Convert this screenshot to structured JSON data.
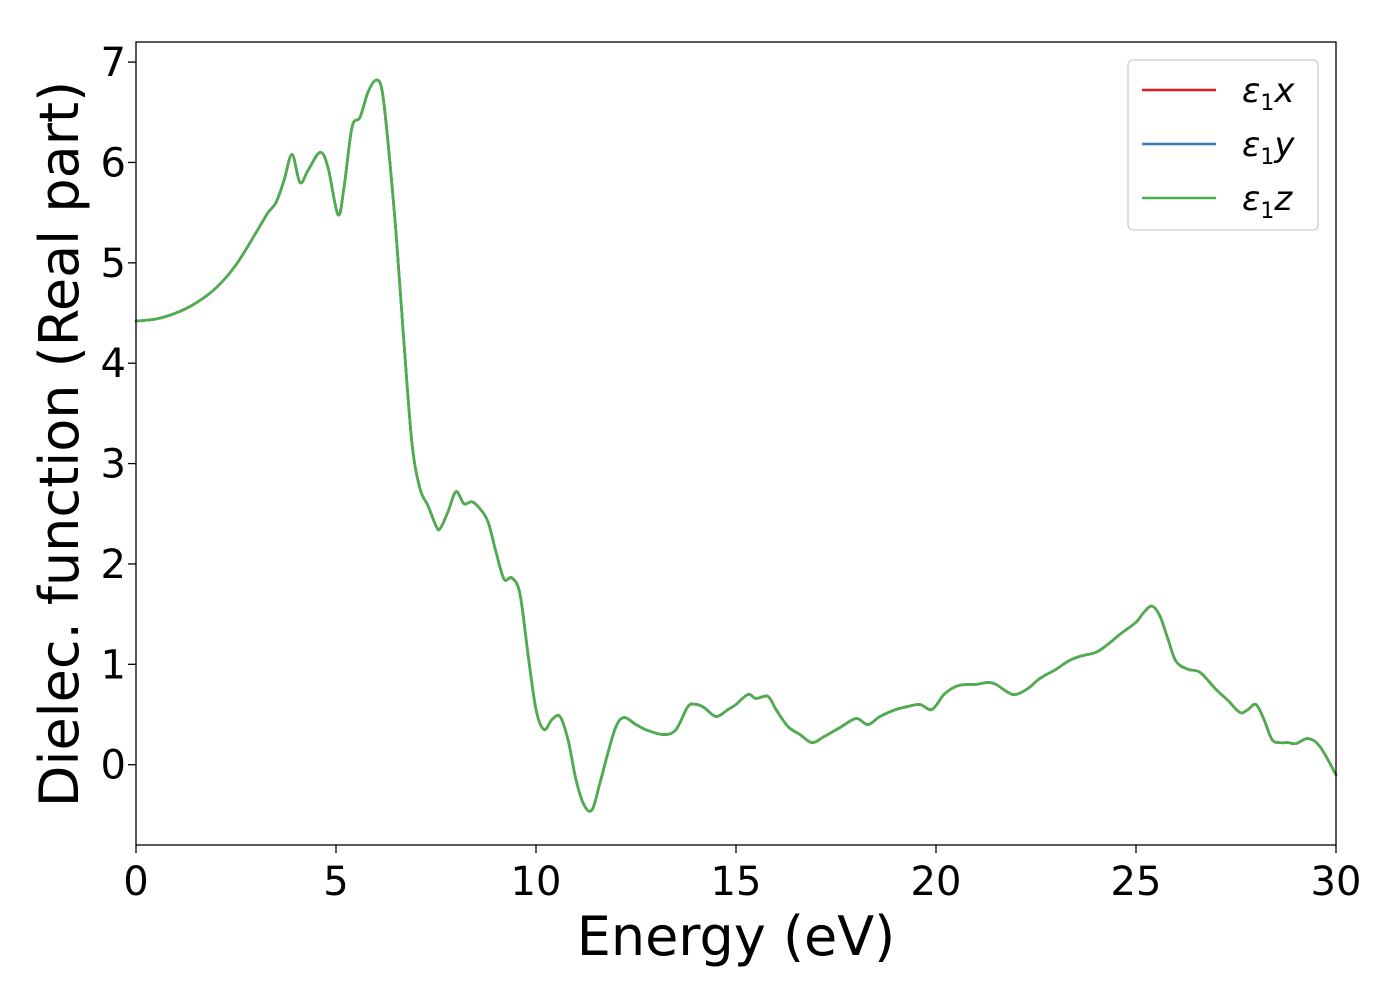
{
  "chart_data": {
    "type": "line",
    "xlabel": "Energy (eV)",
    "ylabel": "Dielec. function (Real part)",
    "xlim": [
      0,
      30
    ],
    "ylim": [
      -0.8,
      7.2
    ],
    "xticks": [
      0,
      5,
      10,
      15,
      20,
      25,
      30
    ],
    "yticks": [
      0,
      1,
      2,
      3,
      4,
      5,
      6,
      7
    ],
    "grid": false,
    "legend_position": "top-right",
    "legend": [
      {
        "symbol": "ε",
        "sub": "1",
        "axis": "x",
        "color": "#e41a1c"
      },
      {
        "symbol": "ε",
        "sub": "1",
        "axis": "y",
        "color": "#377eb8"
      },
      {
        "symbol": "ε",
        "sub": "1",
        "axis": "z",
        "color": "#4daf4a"
      }
    ],
    "x": [
      0,
      0.5,
      1.0,
      1.5,
      2.0,
      2.5,
      3.0,
      3.3,
      3.5,
      3.7,
      3.9,
      4.1,
      4.3,
      4.6,
      4.8,
      5.05,
      5.2,
      5.4,
      5.6,
      5.8,
      6.0,
      6.15,
      6.3,
      6.5,
      6.7,
      6.9,
      7.1,
      7.3,
      7.5,
      7.6,
      7.8,
      8.0,
      8.2,
      8.4,
      8.6,
      8.8,
      9.0,
      9.2,
      9.4,
      9.6,
      9.8,
      10.0,
      10.2,
      10.4,
      10.6,
      10.8,
      11.0,
      11.2,
      11.4,
      11.6,
      11.8,
      12.0,
      12.2,
      12.5,
      12.8,
      13.2,
      13.5,
      13.8,
      14.0,
      14.2,
      14.5,
      14.8,
      15.0,
      15.3,
      15.5,
      15.8,
      16.0,
      16.3,
      16.6,
      16.9,
      17.2,
      17.6,
      18.0,
      18.3,
      18.6,
      19.0,
      19.3,
      19.6,
      19.9,
      20.2,
      20.5,
      20.8,
      21.0,
      21.3,
      21.5,
      21.8,
      22.0,
      22.3,
      22.6,
      23.0,
      23.3,
      23.6,
      24.0,
      24.3,
      24.6,
      25.0,
      25.2,
      25.4,
      25.6,
      25.8,
      26.0,
      26.3,
      26.6,
      27.0,
      27.3,
      27.6,
      27.8,
      28.0,
      28.2,
      28.4,
      28.6,
      28.8,
      29.0,
      29.3,
      29.6,
      30.0
    ],
    "series": [
      {
        "axis": "x",
        "color": "#e41a1c",
        "values": [
          4.42,
          4.44,
          4.5,
          4.6,
          4.75,
          4.98,
          5.3,
          5.5,
          5.6,
          5.82,
          6.08,
          5.8,
          5.92,
          6.1,
          5.95,
          5.48,
          5.75,
          6.35,
          6.45,
          6.7,
          6.82,
          6.72,
          6.2,
          5.3,
          4.2,
          3.2,
          2.75,
          2.58,
          2.38,
          2.35,
          2.52,
          2.72,
          2.6,
          2.62,
          2.55,
          2.42,
          2.12,
          1.85,
          1.86,
          1.7,
          1.1,
          0.55,
          0.35,
          0.45,
          0.48,
          0.25,
          -0.15,
          -0.4,
          -0.45,
          -0.18,
          0.12,
          0.38,
          0.47,
          0.4,
          0.34,
          0.3,
          0.35,
          0.58,
          0.6,
          0.57,
          0.48,
          0.55,
          0.6,
          0.7,
          0.66,
          0.68,
          0.55,
          0.38,
          0.3,
          0.22,
          0.28,
          0.37,
          0.46,
          0.4,
          0.48,
          0.55,
          0.58,
          0.6,
          0.55,
          0.7,
          0.78,
          0.8,
          0.8,
          0.82,
          0.8,
          0.72,
          0.7,
          0.76,
          0.86,
          0.95,
          1.03,
          1.08,
          1.12,
          1.2,
          1.3,
          1.42,
          1.52,
          1.58,
          1.48,
          1.25,
          1.03,
          0.95,
          0.92,
          0.75,
          0.64,
          0.52,
          0.55,
          0.6,
          0.45,
          0.25,
          0.22,
          0.22,
          0.21,
          0.26,
          0.18,
          -0.1
        ]
      },
      {
        "axis": "y",
        "color": "#377eb8",
        "values": [
          4.42,
          4.44,
          4.5,
          4.6,
          4.75,
          4.98,
          5.3,
          5.5,
          5.6,
          5.82,
          6.08,
          5.8,
          5.92,
          6.1,
          5.95,
          5.48,
          5.75,
          6.35,
          6.45,
          6.7,
          6.82,
          6.72,
          6.2,
          5.3,
          4.2,
          3.2,
          2.75,
          2.58,
          2.38,
          2.35,
          2.52,
          2.72,
          2.6,
          2.62,
          2.55,
          2.42,
          2.12,
          1.85,
          1.86,
          1.7,
          1.1,
          0.55,
          0.35,
          0.45,
          0.48,
          0.25,
          -0.15,
          -0.4,
          -0.45,
          -0.18,
          0.12,
          0.38,
          0.47,
          0.4,
          0.34,
          0.3,
          0.35,
          0.58,
          0.6,
          0.57,
          0.48,
          0.55,
          0.6,
          0.7,
          0.66,
          0.68,
          0.55,
          0.38,
          0.3,
          0.22,
          0.28,
          0.37,
          0.46,
          0.4,
          0.48,
          0.55,
          0.58,
          0.6,
          0.55,
          0.7,
          0.78,
          0.8,
          0.8,
          0.82,
          0.8,
          0.72,
          0.7,
          0.76,
          0.86,
          0.95,
          1.03,
          1.08,
          1.12,
          1.2,
          1.3,
          1.42,
          1.52,
          1.58,
          1.48,
          1.25,
          1.03,
          0.95,
          0.92,
          0.75,
          0.64,
          0.52,
          0.55,
          0.6,
          0.45,
          0.25,
          0.22,
          0.22,
          0.21,
          0.26,
          0.18,
          -0.1
        ]
      },
      {
        "axis": "z",
        "color": "#4daf4a",
        "values": [
          4.42,
          4.44,
          4.5,
          4.6,
          4.75,
          4.98,
          5.3,
          5.5,
          5.6,
          5.82,
          6.08,
          5.8,
          5.92,
          6.1,
          5.95,
          5.48,
          5.75,
          6.35,
          6.45,
          6.7,
          6.82,
          6.72,
          6.2,
          5.3,
          4.2,
          3.2,
          2.75,
          2.58,
          2.38,
          2.35,
          2.52,
          2.72,
          2.6,
          2.62,
          2.55,
          2.42,
          2.12,
          1.85,
          1.86,
          1.7,
          1.1,
          0.55,
          0.35,
          0.45,
          0.48,
          0.25,
          -0.15,
          -0.4,
          -0.45,
          -0.18,
          0.12,
          0.38,
          0.47,
          0.4,
          0.34,
          0.3,
          0.35,
          0.58,
          0.6,
          0.57,
          0.48,
          0.55,
          0.6,
          0.7,
          0.66,
          0.68,
          0.55,
          0.38,
          0.3,
          0.22,
          0.28,
          0.37,
          0.46,
          0.4,
          0.48,
          0.55,
          0.58,
          0.6,
          0.55,
          0.7,
          0.78,
          0.8,
          0.8,
          0.82,
          0.8,
          0.72,
          0.7,
          0.76,
          0.86,
          0.95,
          1.03,
          1.08,
          1.12,
          1.2,
          1.3,
          1.42,
          1.52,
          1.58,
          1.48,
          1.25,
          1.03,
          0.95,
          0.92,
          0.75,
          0.64,
          0.52,
          0.55,
          0.6,
          0.45,
          0.25,
          0.22,
          0.22,
          0.21,
          0.26,
          0.18,
          -0.1
        ]
      }
    ]
  }
}
